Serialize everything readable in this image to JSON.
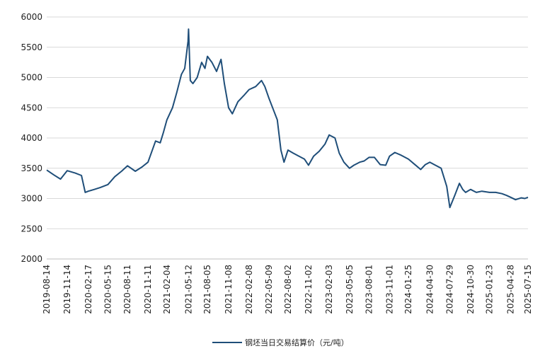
{
  "chart_data": {
    "type": "line",
    "title": "",
    "xlabel": "",
    "ylabel": "",
    "ylim": [
      2000,
      6000
    ],
    "yticks": [
      2000,
      2500,
      3000,
      3500,
      4000,
      4500,
      5000,
      5500,
      6000
    ],
    "xticks": [
      "2019-08-14",
      "2019-11-14",
      "2020-02-17",
      "2020-05-15",
      "2020-08-11",
      "2020-11-11",
      "2021-02-04",
      "2021-05-12",
      "2021-08-05",
      "2021-11-08",
      "2022-02-08",
      "2022-05-09",
      "2022-08-02",
      "2022-11-02",
      "2023-02-03",
      "2023-05-05",
      "2023-08-01",
      "2023-11-01",
      "2024-01-25",
      "2024-04-30",
      "2024-07-29",
      "2024-10-30",
      "2025-01-23",
      "2025-04-28",
      "2025-07-15"
    ],
    "grid": "horizontal",
    "legend": "bottom-center",
    "series": [
      {
        "name": "钢坯当日交易结算价（元/吨）",
        "color": "#1F4E79",
        "x": [
          "2019-08-14",
          "2019-09-15",
          "2019-10-15",
          "2019-11-14",
          "2019-12-20",
          "2020-01-17",
          "2020-02-03",
          "2020-02-17",
          "2020-03-15",
          "2020-04-10",
          "2020-05-15",
          "2020-06-15",
          "2020-07-15",
          "2020-08-11",
          "2020-09-15",
          "2020-10-15",
          "2020-11-11",
          "2020-12-15",
          "2021-01-05",
          "2021-01-20",
          "2021-02-04",
          "2021-03-01",
          "2021-03-20",
          "2021-04-10",
          "2021-04-25",
          "2021-05-10",
          "2021-05-12",
          "2021-05-20",
          "2021-06-01",
          "2021-06-20",
          "2021-07-10",
          "2021-07-25",
          "2021-08-05",
          "2021-08-25",
          "2021-09-15",
          "2021-10-05",
          "2021-10-20",
          "2021-11-08",
          "2021-11-25",
          "2021-12-20",
          "2022-01-15",
          "2022-02-08",
          "2022-03-10",
          "2022-04-05",
          "2022-04-20",
          "2022-05-09",
          "2022-05-25",
          "2022-06-15",
          "2022-07-01",
          "2022-07-15",
          "2022-08-02",
          "2022-08-25",
          "2022-09-20",
          "2022-10-15",
          "2022-11-02",
          "2022-11-25",
          "2022-12-20",
          "2023-01-15",
          "2023-02-03",
          "2023-03-01",
          "2023-03-20",
          "2023-04-10",
          "2023-05-05",
          "2023-05-25",
          "2023-06-20",
          "2023-07-10",
          "2023-08-01",
          "2023-08-25",
          "2023-09-20",
          "2023-10-15",
          "2023-11-01",
          "2023-11-25",
          "2023-12-20",
          "2024-01-10",
          "2024-01-25",
          "2024-02-20",
          "2024-03-20",
          "2024-04-10",
          "2024-04-30",
          "2024-05-25",
          "2024-06-20",
          "2024-07-15",
          "2024-07-29",
          "2024-08-20",
          "2024-09-10",
          "2024-09-25",
          "2024-10-08",
          "2024-10-30",
          "2024-11-25",
          "2024-12-20",
          "2025-01-23",
          "2025-02-20",
          "2025-03-20",
          "2025-04-10",
          "2025-04-28",
          "2025-05-20",
          "2025-06-15",
          "2025-07-01",
          "2025-07-15"
        ],
        "values": [
          3470,
          3390,
          3320,
          3460,
          3420,
          3380,
          3100,
          3120,
          3150,
          3180,
          3230,
          3360,
          3450,
          3540,
          3450,
          3520,
          3600,
          3950,
          3920,
          4100,
          4300,
          4500,
          4750,
          5050,
          5150,
          5600,
          5800,
          4950,
          4900,
          5000,
          5250,
          5150,
          5350,
          5250,
          5100,
          5300,
          4900,
          4500,
          4400,
          4600,
          4700,
          4800,
          4850,
          4950,
          4850,
          4650,
          4500,
          4300,
          3800,
          3600,
          3800,
          3750,
          3700,
          3650,
          3550,
          3700,
          3780,
          3900,
          4050,
          4000,
          3750,
          3600,
          3500,
          3550,
          3600,
          3620,
          3680,
          3680,
          3560,
          3550,
          3700,
          3760,
          3720,
          3680,
          3650,
          3570,
          3480,
          3560,
          3600,
          3550,
          3500,
          3200,
          2850,
          3050,
          3250,
          3150,
          3100,
          3150,
          3100,
          3120,
          3100,
          3100,
          3080,
          3050,
          3020,
          2980,
          3010,
          3000,
          3020
        ]
      }
    ]
  }
}
